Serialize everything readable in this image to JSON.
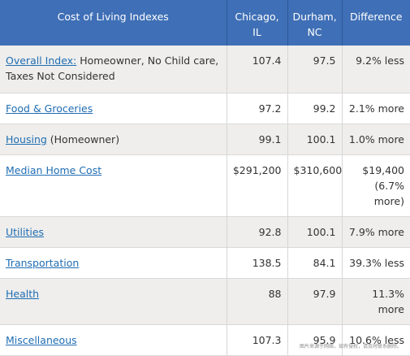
{
  "table": {
    "headers": [
      "Cost of Living Indexes",
      "Chicago,\nIL",
      "Durham,\nNC",
      "Difference"
    ],
    "rows": [
      {
        "link": "Overall Index:",
        "rest": " Homeowner, No Child care, Taxes Not Considered",
        "chicago": "107.4",
        "durham": "97.5",
        "diff": "9.2% less"
      },
      {
        "link": "Food & Groceries",
        "rest": "",
        "chicago": "97.2",
        "durham": "99.2",
        "diff": "2.1% more"
      },
      {
        "link": "Housing",
        "rest": " (Homeowner)",
        "chicago": "99.1",
        "durham": "100.1",
        "diff": "1.0% more"
      },
      {
        "link": "Median Home Cost",
        "rest": "",
        "chicago": "$291,200",
        "durham": "$310,600",
        "diff": "$19,400 (6.7% more)"
      },
      {
        "link": "Utilities",
        "rest": "",
        "chicago": "92.8",
        "durham": "100.1",
        "diff": "7.9% more"
      },
      {
        "link": "Transportation",
        "rest": "",
        "chicago": "138.5",
        "durham": "84.1",
        "diff": "39.3% less"
      },
      {
        "link": "Health",
        "rest": "",
        "chicago": "88",
        "durham": "97.9",
        "diff": "11.3% more"
      },
      {
        "link": "Miscellaneous",
        "rest": "",
        "chicago": "107.3",
        "durham": "95.9",
        "diff": "10.6% less"
      }
    ]
  },
  "watermark": "图片来源于网络，如有侵权，请及时联系删除。",
  "colors": {
    "header_bg": "#3f6fb6",
    "link": "#1f6db3",
    "row_shade": "#efeeec"
  }
}
